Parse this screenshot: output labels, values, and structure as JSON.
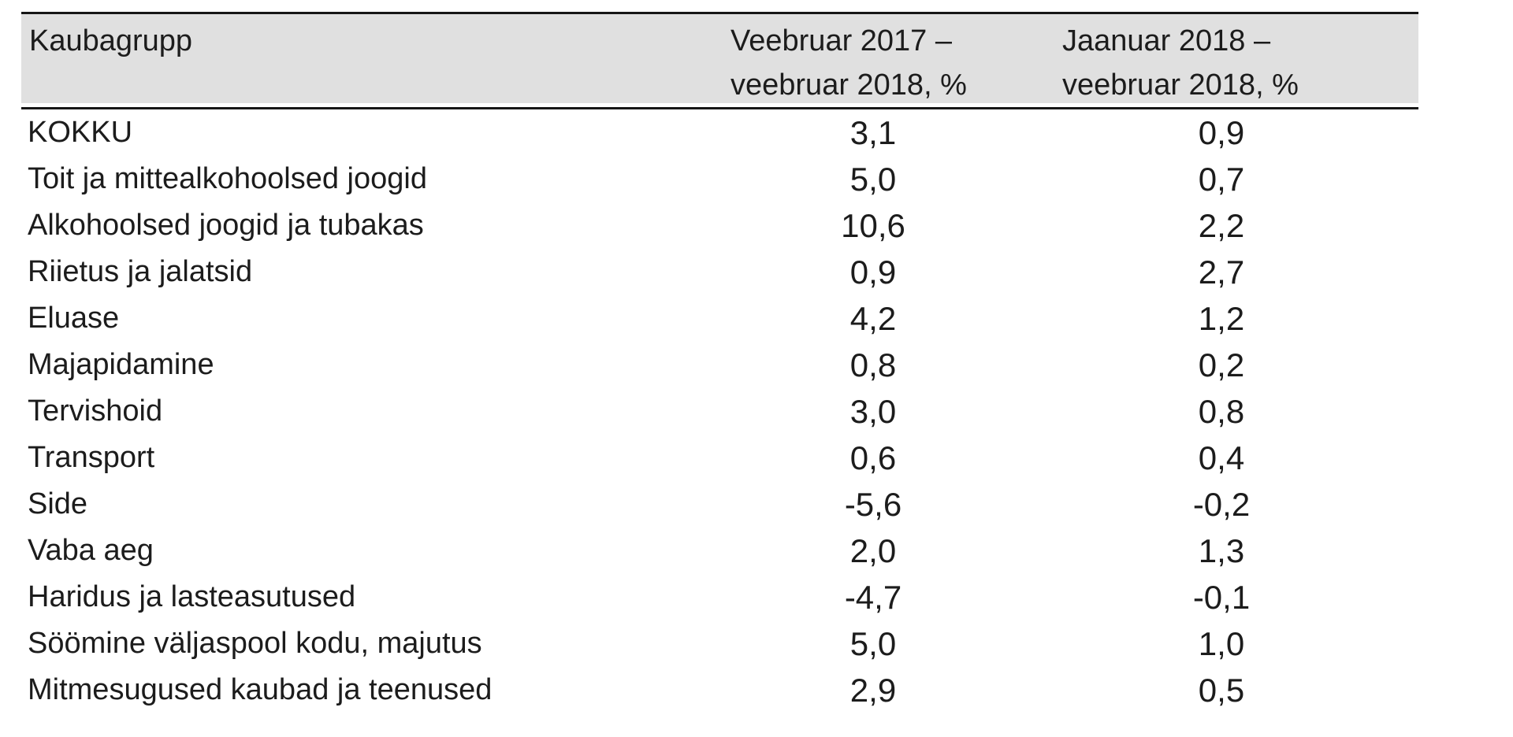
{
  "table": {
    "colors": {
      "header_bg": "#e0e0e0",
      "line": "#161616",
      "text": "#1c1c1c"
    },
    "header": {
      "col1": "Kaubagrupp",
      "col2_line1": "Veebruar 2017 –",
      "col2_line2": "veebruar 2018, %",
      "col3_line1": "Jaanuar 2018 –",
      "col3_line2": "veebruar 2018, %"
    },
    "rows": [
      {
        "label": "KOKKU",
        "v1": "3,1",
        "v2": "0,9"
      },
      {
        "label": "Toit ja mittealkohoolsed joogid",
        "v1": "5,0",
        "v2": "0,7"
      },
      {
        "label": "Alkohoolsed joogid ja tubakas",
        "v1": "10,6",
        "v2": "2,2"
      },
      {
        "label": "Riietus ja jalatsid",
        "v1": "0,9",
        "v2": "2,7"
      },
      {
        "label": "Eluase",
        "v1": "4,2",
        "v2": "1,2"
      },
      {
        "label": "Majapidamine",
        "v1": "0,8",
        "v2": "0,2"
      },
      {
        "label": "Tervishoid",
        "v1": "3,0",
        "v2": "0,8"
      },
      {
        "label": "Transport",
        "v1": "0,6",
        "v2": "0,4"
      },
      {
        "label": "Side",
        "v1": "-5,6",
        "v2": "-0,2"
      },
      {
        "label": "Vaba aeg",
        "v1": "2,0",
        "v2": "1,3"
      },
      {
        "label": "Haridus ja lasteasutused",
        "v1": "-4,7",
        "v2": "-0,1"
      },
      {
        "label": "Söömine väljaspool kodu, majutus",
        "v1": "5,0",
        "v2": "1,0"
      },
      {
        "label": "Mitmesugused kaubad ja teenused",
        "v1": "2,9",
        "v2": "0,5"
      }
    ]
  },
  "chart_data": {
    "type": "table",
    "columns": [
      "Kaubagrupp",
      "Veebruar 2017 – veebruar 2018, %",
      "Jaanuar 2018 – veebruar 2018, %"
    ],
    "rows": [
      [
        "KOKKU",
        3.1,
        0.9
      ],
      [
        "Toit ja mittealkohoolsed joogid",
        5.0,
        0.7
      ],
      [
        "Alkohoolsed joogid ja tubakas",
        10.6,
        2.2
      ],
      [
        "Riietus ja jalatsid",
        0.9,
        2.7
      ],
      [
        "Eluase",
        4.2,
        1.2
      ],
      [
        "Majapidamine",
        0.8,
        0.2
      ],
      [
        "Tervishoid",
        3.0,
        0.8
      ],
      [
        "Transport",
        0.6,
        0.4
      ],
      [
        "Side",
        -5.6,
        -0.2
      ],
      [
        "Vaba aeg",
        2.0,
        1.3
      ],
      [
        "Haridus ja lasteasutused",
        -4.7,
        -0.1
      ],
      [
        "Söömine väljaspool kodu, majutus",
        5.0,
        1.0
      ],
      [
        "Mitmesugused kaubad ja teenused",
        2.9,
        0.5
      ]
    ]
  }
}
